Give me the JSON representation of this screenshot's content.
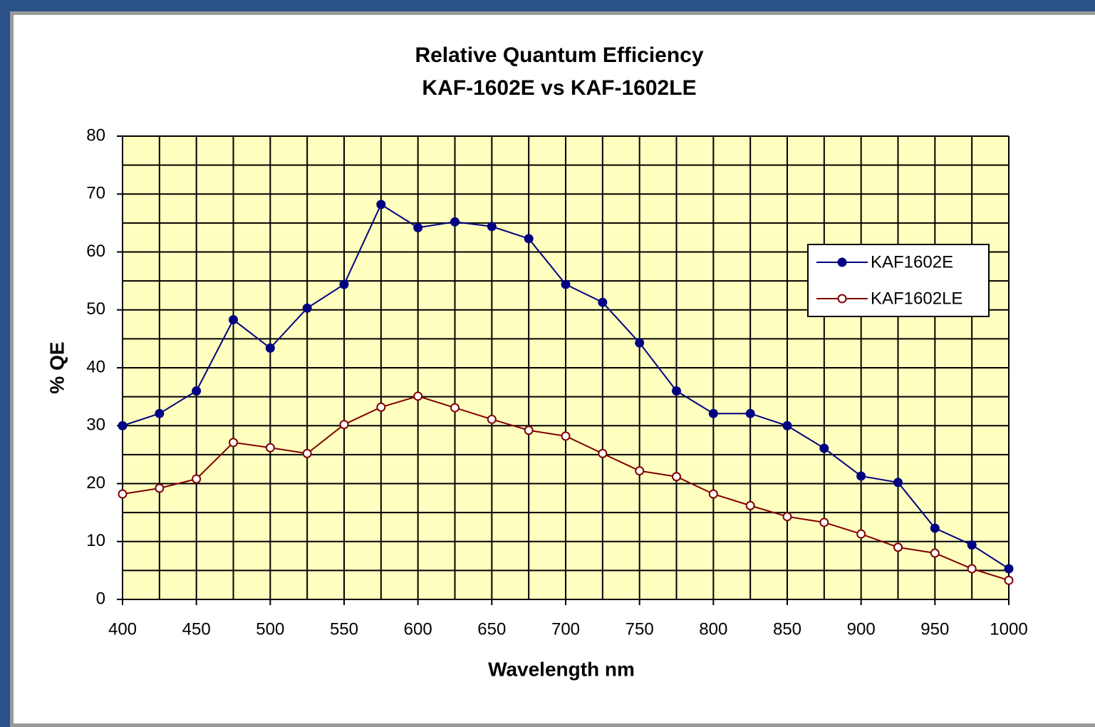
{
  "chart_data": {
    "type": "line",
    "title": "Relative Quantum Efficiency",
    "subtitle": "KAF-1602E vs KAF-1602LE",
    "x_label": "Wavelength nm",
    "y_label": "% QE",
    "x": [
      400,
      425,
      450,
      475,
      500,
      525,
      550,
      575,
      600,
      625,
      650,
      675,
      700,
      725,
      750,
      775,
      800,
      825,
      850,
      875,
      900,
      925,
      950,
      975,
      1000
    ],
    "series": [
      {
        "name": "KAF1602E",
        "color": "#000080",
        "filled": true,
        "values": [
          30.0,
          32.1,
          36.0,
          48.3,
          43.4,
          50.3,
          54.4,
          68.2,
          64.2,
          65.2,
          64.4,
          62.3,
          54.4,
          51.3,
          44.3,
          36.0,
          32.1,
          32.1,
          30.0,
          26.1,
          21.3,
          20.2,
          12.3,
          9.4,
          5.3
        ]
      },
      {
        "name": "KAF1602LE",
        "color": "#800000",
        "filled": false,
        "values": [
          18.2,
          19.2,
          20.8,
          27.1,
          26.2,
          25.2,
          30.2,
          33.2,
          35.1,
          33.1,
          31.1,
          29.2,
          28.2,
          25.2,
          22.2,
          21.2,
          18.2,
          16.2,
          14.3,
          13.3,
          11.3,
          9.0,
          8.0,
          5.3,
          3.3
        ]
      }
    ],
    "xlim": [
      400,
      1000
    ],
    "xticks": [
      400,
      450,
      500,
      550,
      600,
      650,
      700,
      750,
      800,
      850,
      900,
      950,
      1000
    ],
    "ylim": [
      0,
      80
    ],
    "yticks": [
      0,
      10,
      20,
      30,
      40,
      50,
      60,
      70,
      80
    ],
    "grid": true,
    "minor_grid": true,
    "plot_background": "#ffffc0",
    "legend": "right"
  }
}
